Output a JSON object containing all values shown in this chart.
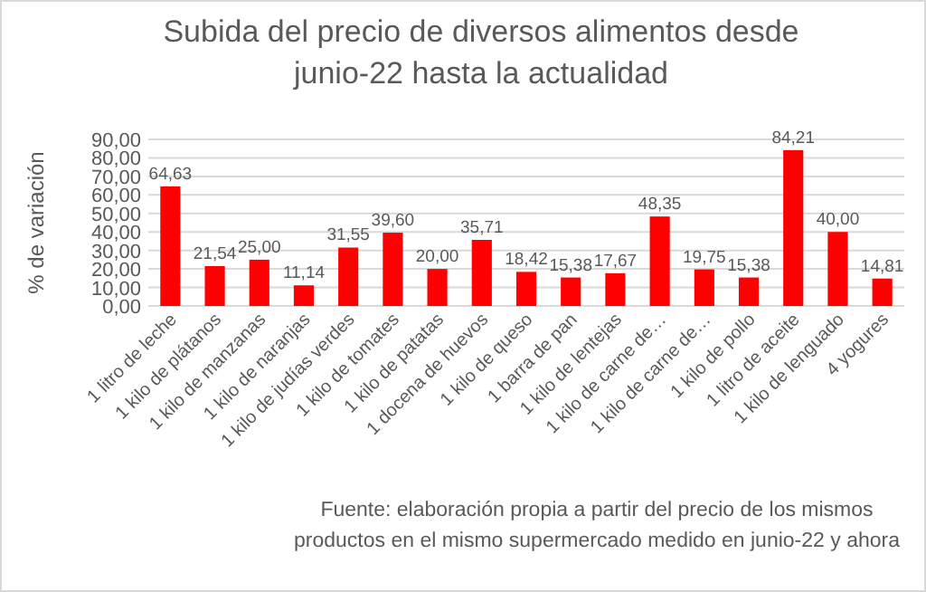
{
  "chart_data": {
    "type": "bar",
    "title": "Subida del precio de diversos alimentos desde junio-22 hasta la actualidad",
    "ylabel": "% de variación",
    "categories": [
      "1 litro de leche",
      "1 kilo de plátanos",
      "1 kilo de manzanas",
      "1 kilo de naranjas",
      "1 kilo de judías verdes",
      "1 kilo de tomates",
      "1 kilo de patatas",
      "1 docena de huevos",
      "1 kilo de queso",
      "1 barra de pan",
      "1 kilo de lentejas",
      "1 kilo de carne de…",
      "1 kilo de carne de…",
      "1 kilo de pollo",
      "1 litro de aceite",
      "1 kilo de lenguado",
      "4 yogures"
    ],
    "values": [
      64.63,
      21.54,
      25.0,
      11.14,
      31.55,
      39.6,
      20.0,
      35.71,
      18.42,
      15.38,
      17.67,
      48.35,
      19.75,
      15.38,
      84.21,
      40.0,
      14.81
    ],
    "value_labels": [
      "64,63",
      "21,54",
      "25,00",
      "11,14",
      "31,55",
      "39,60",
      "20,00",
      "35,71",
      "18,42",
      "15,38",
      "17,67",
      "48,35",
      "19,75",
      "15,38",
      "84,21",
      "40,00",
      "14,81"
    ],
    "color": "#ff0000",
    "ylim": [
      0,
      90
    ],
    "yticks": [
      {
        "value": 0,
        "label": "0,00"
      },
      {
        "value": 10,
        "label": "10,00"
      },
      {
        "value": 20,
        "label": "20,00"
      },
      {
        "value": 30,
        "label": "30,00"
      },
      {
        "value": 40,
        "label": "40,00"
      },
      {
        "value": 50,
        "label": "50,00"
      },
      {
        "value": 60,
        "label": "60,00"
      },
      {
        "value": 70,
        "label": "70,00"
      },
      {
        "value": 80,
        "label": "80,00"
      },
      {
        "value": 90,
        "label": "90,00"
      }
    ],
    "grid": true,
    "annotations": [
      "Fuente: elaboración propia a partir del precio de los mismos productos en el mismo supermercado medido en junio-22 y ahora"
    ]
  }
}
